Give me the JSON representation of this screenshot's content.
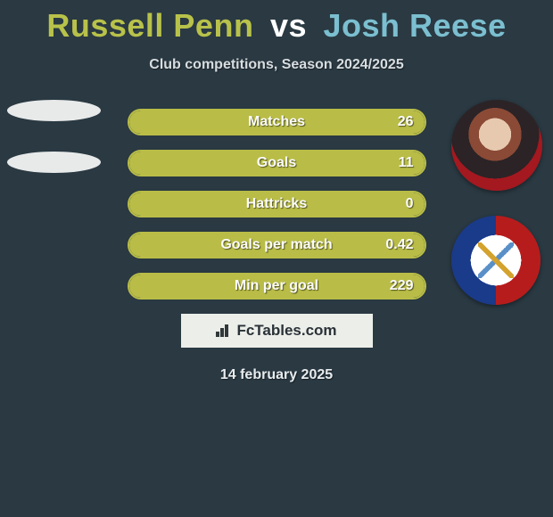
{
  "title": {
    "player1": "Russell Penn",
    "vs": "vs",
    "player2": "Josh Reese",
    "player1_color": "#b8c24a",
    "player2_color": "#7bbfd0"
  },
  "subtitle": "Club competitions, Season 2024/2025",
  "colors": {
    "background": "#2a3942",
    "bar_border": "#b9bd47",
    "bar_fill": "#b9bd47",
    "text": "#ffffff"
  },
  "stats": [
    {
      "label": "Matches",
      "value": "26",
      "fill_pct": 100
    },
    {
      "label": "Goals",
      "value": "11",
      "fill_pct": 100
    },
    {
      "label": "Hattricks",
      "value": "0",
      "fill_pct": 100
    },
    {
      "label": "Goals per match",
      "value": "0.42",
      "fill_pct": 100
    },
    {
      "label": "Min per goal",
      "value": "229",
      "fill_pct": 100
    }
  ],
  "brand": "FcTables.com",
  "date": "14 february 2025"
}
